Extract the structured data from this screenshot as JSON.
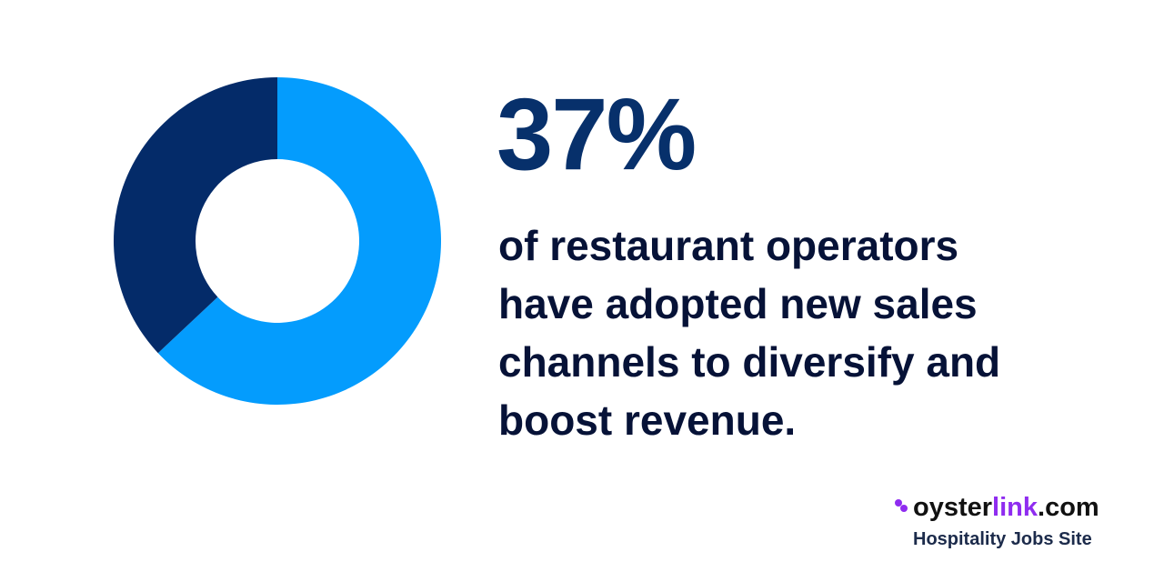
{
  "chart_data": {
    "type": "donut",
    "values": [
      63,
      37
    ],
    "value_labels": [
      null,
      "37%"
    ],
    "colors": [
      "#049cfd",
      "#042b69"
    ],
    "description": "of restaurant operators have adopted new sales channels to diversify and boost revenue."
  },
  "branding": {
    "logo_parts": [
      "oyster",
      "link",
      ".com"
    ],
    "tagline": "Hospitality Jobs Site"
  }
}
